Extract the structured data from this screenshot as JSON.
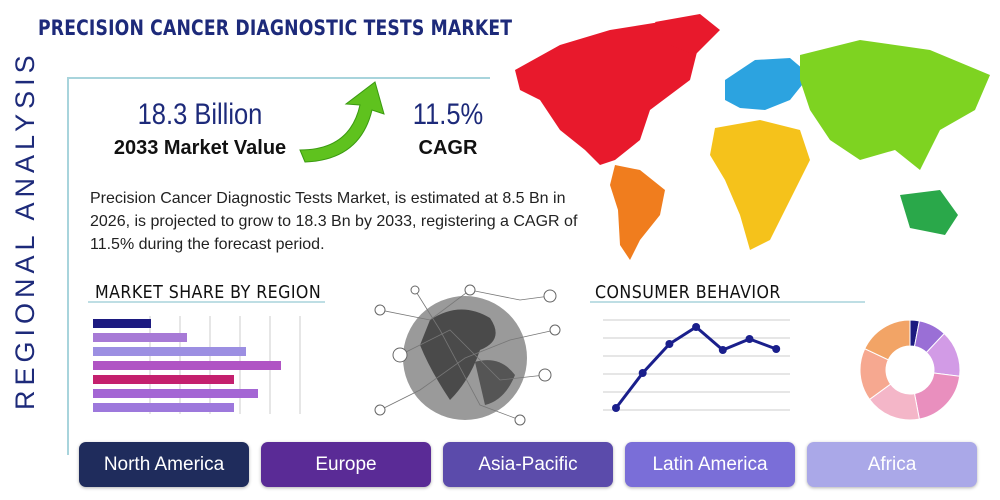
{
  "header": {
    "title": "PRECISION CANCER DIAGNOSTIC TESTS MARKET"
  },
  "side_label": "REGIONAL ANALYSIS",
  "stats": [
    {
      "value": "18.3 Billion",
      "label": "2033 Market Value"
    },
    {
      "value": "11.5%",
      "label": "CAGR"
    }
  ],
  "description": "Precision Cancer Diagnostic Tests Market, is estimated at 8.5 Bn in 2026, is projected to grow to 18.3 Bn by 2033, registering a CAGR of 11.5% during the forecast period.",
  "market_share": {
    "title": "MARKET SHARE BY REGION",
    "chart_data": {
      "type": "hbar",
      "values": [
        58,
        94,
        153,
        188,
        141,
        165,
        141
      ],
      "colors": [
        "#1c1a80",
        "#a77ad6",
        "#9c8fe2",
        "#b054c4",
        "#c4206e",
        "#a466d4",
        "#9d78dc"
      ]
    }
  },
  "consumer_behavior": {
    "title": "CONSUMER BEHAVIOR",
    "chart_data": {
      "type": "line",
      "values": [
        12,
        47,
        76,
        93,
        70,
        81,
        71
      ],
      "color": "#1a1f8c"
    }
  },
  "donut": {
    "chart_data": {
      "type": "donut",
      "values": [
        3,
        9,
        15,
        20,
        18,
        17,
        18
      ],
      "colors": [
        "#1c1a80",
        "#9a6fd6",
        "#d29be6",
        "#e98fbe",
        "#f4b6c8",
        "#f6a890",
        "#f2a466"
      ]
    }
  },
  "regions": [
    {
      "label": "North America",
      "color": "#1f2c5c"
    },
    {
      "label": "Europe",
      "color": "#5a2b96"
    },
    {
      "label": "Asia-Pacific",
      "color": "#5b4bab"
    },
    {
      "label": "Latin America",
      "color": "#7a6ed8"
    },
    {
      "label": "Africa",
      "color": "#aaa8e8"
    }
  ]
}
